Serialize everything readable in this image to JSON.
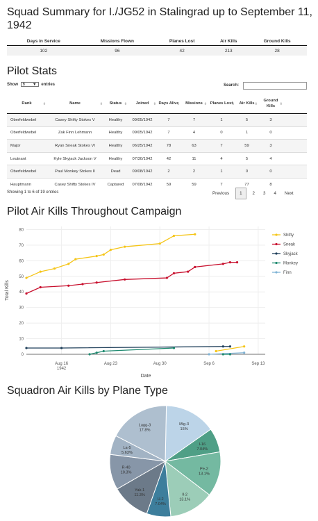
{
  "summary": {
    "title": "Squad Summary for I./JG52 in Stalingrad up to September 11, 1942",
    "headers": [
      "Days in Service",
      "Missions Flown",
      "Planes Lost",
      "Air Kills",
      "Ground Kills"
    ],
    "values": [
      "102",
      "96",
      "42",
      "213",
      "28"
    ]
  },
  "pilot_stats": {
    "title": "Pilot Stats",
    "show_label": "Show",
    "show_value": "6",
    "entries_label": "entries",
    "search_label": "Search:",
    "search_value": "",
    "headers": [
      "Rank",
      "Name",
      "Status",
      "Joined",
      "Days Alive",
      "Missions",
      "Planes Lost",
      "Air Kills",
      "Ground Kills"
    ],
    "rows": [
      [
        "Oberfeldwebel",
        "Casey Shifty Stokes V",
        "Healthy",
        "09/05/1942",
        "7",
        "7",
        "1",
        "5",
        "3"
      ],
      [
        "Oberfeldwebel",
        "Zak Finn Lehmann",
        "Healthy",
        "09/05/1942",
        "7",
        "4",
        "0",
        "1",
        "0"
      ],
      [
        "Major",
        "Ryan Sneak Stokes VI",
        "Healthy",
        "06/25/1942",
        "78",
        "63",
        "7",
        "59",
        "3"
      ],
      [
        "Leutnant",
        "Kyle Skyjack Jackson V",
        "Healthy",
        "07/30/1942",
        "42",
        "11",
        "4",
        "5",
        "4"
      ],
      [
        "Oberfeldwebel",
        "Paul Monkey Stokes II",
        "Dead",
        "09/08/1942",
        "2",
        "2",
        "1",
        "0",
        "0"
      ],
      [
        "Hauptmann",
        "Casey Shifty Stokes IV",
        "Captured",
        "07/08/1942",
        "59",
        "59",
        "7",
        "77",
        "8"
      ]
    ],
    "info": "Showing 1 to 6 of 19 entries",
    "pager": {
      "previous": "Previous",
      "pages": [
        "1",
        "2",
        "3",
        "4"
      ],
      "current": "1",
      "next": "Next"
    }
  },
  "line_section": {
    "title": "Pilot Air Kills Throughout Campaign"
  },
  "pie_section": {
    "title": "Squadron Air Kills by Plane Type"
  },
  "chart_data": [
    {
      "type": "line",
      "title": "Pilot Air Kills Throughout Campaign",
      "xlabel": "Date",
      "ylabel": "Total Kills",
      "xlim": [
        "1942-08-11",
        "1942-09-14"
      ],
      "ylim": [
        0,
        82
      ],
      "yticks": [
        0,
        10,
        20,
        30,
        40,
        50,
        60,
        70,
        80
      ],
      "xticks": [
        {
          "date": "1942-08-16",
          "label": "Aug 16",
          "sublabel": "1942"
        },
        {
          "date": "1942-08-23",
          "label": "Aug 23",
          "sublabel": ""
        },
        {
          "date": "1942-08-30",
          "label": "Aug 30",
          "sublabel": ""
        },
        {
          "date": "1942-09-06",
          "label": "Sep 6",
          "sublabel": ""
        },
        {
          "date": "1942-09-13",
          "label": "Sep 13",
          "sublabel": ""
        }
      ],
      "grid": true,
      "legend": "right",
      "series": [
        {
          "name": "Shifty",
          "color": "#f5c518",
          "x": [
            "1942-08-11",
            "1942-08-13",
            "1942-08-15",
            "1942-08-17",
            "1942-08-18",
            "1942-08-21",
            "1942-08-22",
            "1942-08-23",
            "1942-08-25",
            "1942-08-30",
            "1942-09-01",
            "1942-09-04"
          ],
          "y": [
            49,
            53,
            55,
            58,
            61,
            63,
            64,
            67,
            69,
            71,
            76,
            77
          ]
        },
        {
          "name": "Sneak",
          "color": "#c8102e",
          "x": [
            "1942-08-11",
            "1942-08-13",
            "1942-08-17",
            "1942-08-19",
            "1942-08-21",
            "1942-08-25",
            "1942-08-31",
            "1942-09-01",
            "1942-09-03",
            "1942-09-04",
            "1942-09-08",
            "1942-09-09",
            "1942-09-10"
          ],
          "y": [
            39,
            43,
            44,
            45,
            46,
            48,
            49,
            52,
            53,
            56,
            58,
            59,
            59
          ]
        },
        {
          "name": "Skyjack",
          "color": "#1f3f5a",
          "x": [
            "1942-08-11",
            "1942-08-16",
            "1942-09-08",
            "1942-09-09"
          ],
          "y": [
            4,
            4,
            5,
            5
          ]
        },
        {
          "name": "Monkey",
          "color": "#1f8a70",
          "x": [
            "1942-08-20",
            "1942-08-21",
            "1942-08-22",
            "1942-09-01"
          ],
          "y": [
            0,
            1,
            2,
            4
          ]
        },
        {
          "name": "Finn",
          "color": "#7fb3d5",
          "x": [
            "1942-09-06",
            "1942-09-11"
          ],
          "y": [
            0,
            1
          ]
        },
        {
          "name": "",
          "color": "#f5c518",
          "x": [
            "1942-09-07",
            "1942-09-11"
          ],
          "y": [
            2,
            5
          ]
        },
        {
          "name": "",
          "color": "#1f8a70",
          "x": [
            "1942-09-08",
            "1942-09-09"
          ],
          "y": [
            0,
            0
          ]
        }
      ]
    },
    {
      "type": "pie",
      "title": "Squadron Air Kills by Plane Type",
      "slices": [
        {
          "label": "Mig-3",
          "value": 15,
          "display": "15%",
          "color": "#bcd4e8"
        },
        {
          "label": "I-16",
          "value": 7.04,
          "display": "7.04%",
          "color": "#4f9f86"
        },
        {
          "label": "Pe-2",
          "value": 13.1,
          "display": "13.1%",
          "color": "#74b9a1"
        },
        {
          "label": "Il-2",
          "value": 13.1,
          "display": "13.1%",
          "color": "#9ccdb8"
        },
        {
          "label": "U-2",
          "value": 7.04,
          "display": "7.04%",
          "color": "#3d7e9c"
        },
        {
          "label": "Yak-1",
          "value": 11.3,
          "display": "11.3%",
          "color": "#6c7a89"
        },
        {
          "label": "R-40",
          "value": 10.3,
          "display": "10.3%",
          "color": "#8796a8"
        },
        {
          "label": "La-5",
          "value": 5.63,
          "display": "5.63%",
          "color": "#a2b3c4"
        },
        {
          "label": "Lagg-3",
          "value": 17.8,
          "display": "17.8%",
          "color": "#aebfcf"
        }
      ]
    }
  ]
}
